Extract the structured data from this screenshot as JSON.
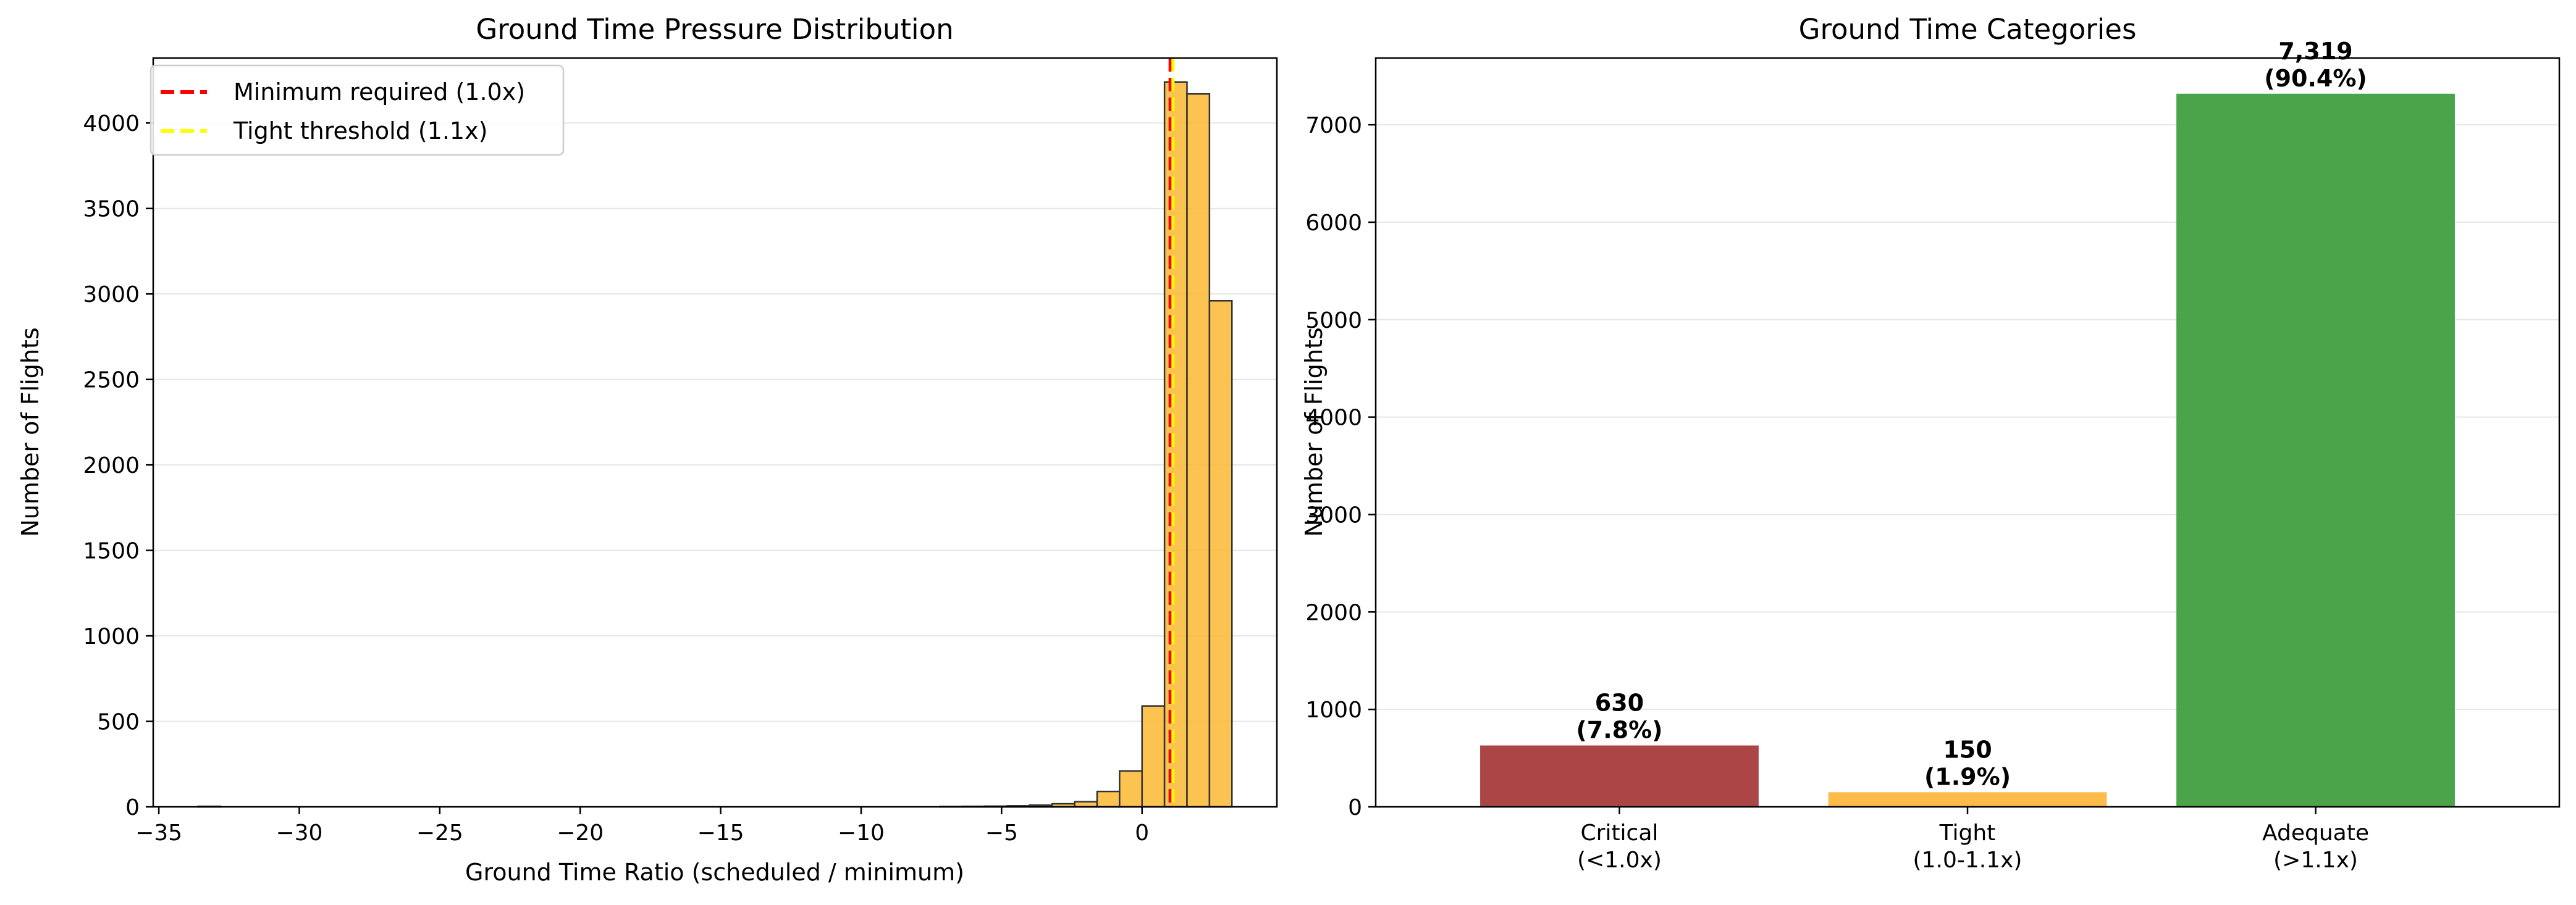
{
  "chart_data": [
    {
      "type": "bar",
      "subtype": "histogram",
      "title": "Ground Time Pressure Distribution",
      "xlabel": "Ground Time Ratio (scheduled / minimum)",
      "ylabel": "Number of Flights",
      "xlim": [
        -35.2,
        4.8
      ],
      "ylim": [
        0,
        4380
      ],
      "xticks": [
        -35,
        -30,
        -25,
        -20,
        -15,
        -10,
        -5,
        0
      ],
      "xtick_labels": [
        "−35",
        "−30",
        "−25",
        "−20",
        "−15",
        "−10",
        "−5",
        "0"
      ],
      "yticks": [
        0,
        500,
        1000,
        1500,
        2000,
        2500,
        3000,
        3500,
        4000
      ],
      "ytick_labels": [
        "0",
        "500",
        "1000",
        "1500",
        "2000",
        "2500",
        "3000",
        "3500",
        "4000"
      ],
      "grid": true,
      "bar_color": "#fdb831",
      "bar_edge_color": "#333333",
      "bins": [
        {
          "x0": -33.6,
          "x1": -32.8,
          "count": 3
        },
        {
          "x0": -7.2,
          "x1": -6.4,
          "count": 2
        },
        {
          "x0": -6.4,
          "x1": -5.6,
          "count": 3
        },
        {
          "x0": -5.6,
          "x1": -4.8,
          "count": 4
        },
        {
          "x0": -4.8,
          "x1": -4.0,
          "count": 6
        },
        {
          "x0": -4.0,
          "x1": -3.2,
          "count": 10
        },
        {
          "x0": -3.2,
          "x1": -2.4,
          "count": 18
        },
        {
          "x0": -2.4,
          "x1": -1.6,
          "count": 30
        },
        {
          "x0": -1.6,
          "x1": -0.8,
          "count": 90
        },
        {
          "x0": -0.8,
          "x1": 0.0,
          "count": 210
        },
        {
          "x0": 0.0,
          "x1": 0.8,
          "count": 590
        },
        {
          "x0": 0.8,
          "x1": 1.6,
          "count": 4240
        },
        {
          "x0": 1.6,
          "x1": 2.4,
          "count": 4170
        },
        {
          "x0": 2.4,
          "x1": 3.2,
          "count": 2960
        }
      ],
      "reference_lines": [
        {
          "label": "Minimum required (1.0x)",
          "x": 1.0,
          "color": "#ff0000",
          "style": "dashed"
        },
        {
          "label": "Tight threshold (1.1x)",
          "x": 1.1,
          "color": "#ffff00",
          "style": "dashed"
        }
      ],
      "legend_position": "upper-left"
    },
    {
      "type": "bar",
      "title": "Ground Time Categories",
      "xlabel": "",
      "ylabel": "Number of Flights",
      "ylim": [
        0,
        7685
      ],
      "yticks": [
        0,
        1000,
        2000,
        3000,
        4000,
        5000,
        6000,
        7000
      ],
      "ytick_labels": [
        "0",
        "1000",
        "2000",
        "3000",
        "4000",
        "5000",
        "6000",
        "7000"
      ],
      "grid": true,
      "categories": [
        {
          "name": "Critical",
          "range": "(<1.0x)",
          "value": 630,
          "value_label": "630",
          "pct_label": "(7.8%)",
          "color": "#a83c3c"
        },
        {
          "name": "Tight",
          "range": "(1.0-1.1x)",
          "value": 150,
          "value_label": "150",
          "pct_label": "(1.9%)",
          "color": "#fdb740"
        },
        {
          "name": "Adequate",
          "range": "(>1.1x)",
          "value": 7319,
          "value_label": "7,319",
          "pct_label": "(90.4%)",
          "color": "#40a040"
        }
      ]
    }
  ]
}
